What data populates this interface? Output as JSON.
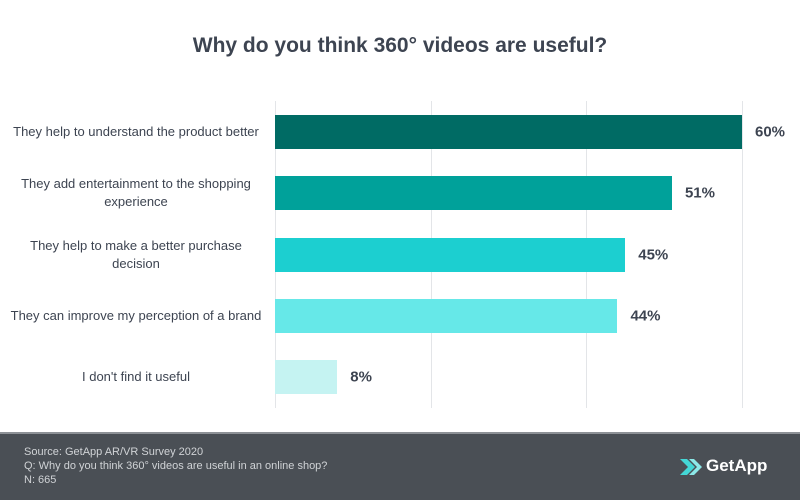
{
  "chart_data": {
    "type": "bar",
    "orientation": "horizontal",
    "title": "Why do you think 360° videos are useful?",
    "categories": [
      "They help to understand the product better",
      "They add entertainment to the shopping experience",
      "They help to make a better purchase decision",
      "They can improve my perception of a brand",
      "I don't find it useful"
    ],
    "values": [
      60,
      51,
      45,
      44,
      8
    ],
    "value_labels": [
      "60%",
      "51%",
      "45%",
      "44%",
      "8%"
    ],
    "colors": [
      "#006b64",
      "#00a19a",
      "#1ccfd0",
      "#66e8e8",
      "#c5f3f2"
    ],
    "xlim": [
      0,
      60
    ],
    "xticks": [
      0,
      20,
      40,
      60
    ],
    "grid": true
  },
  "footer": {
    "notes": [
      "Source: GetApp AR/VR Survey 2020",
      "Q: Why do you think 360° videos are useful in an online shop?",
      "N: 665"
    ],
    "brand": "GetApp"
  }
}
